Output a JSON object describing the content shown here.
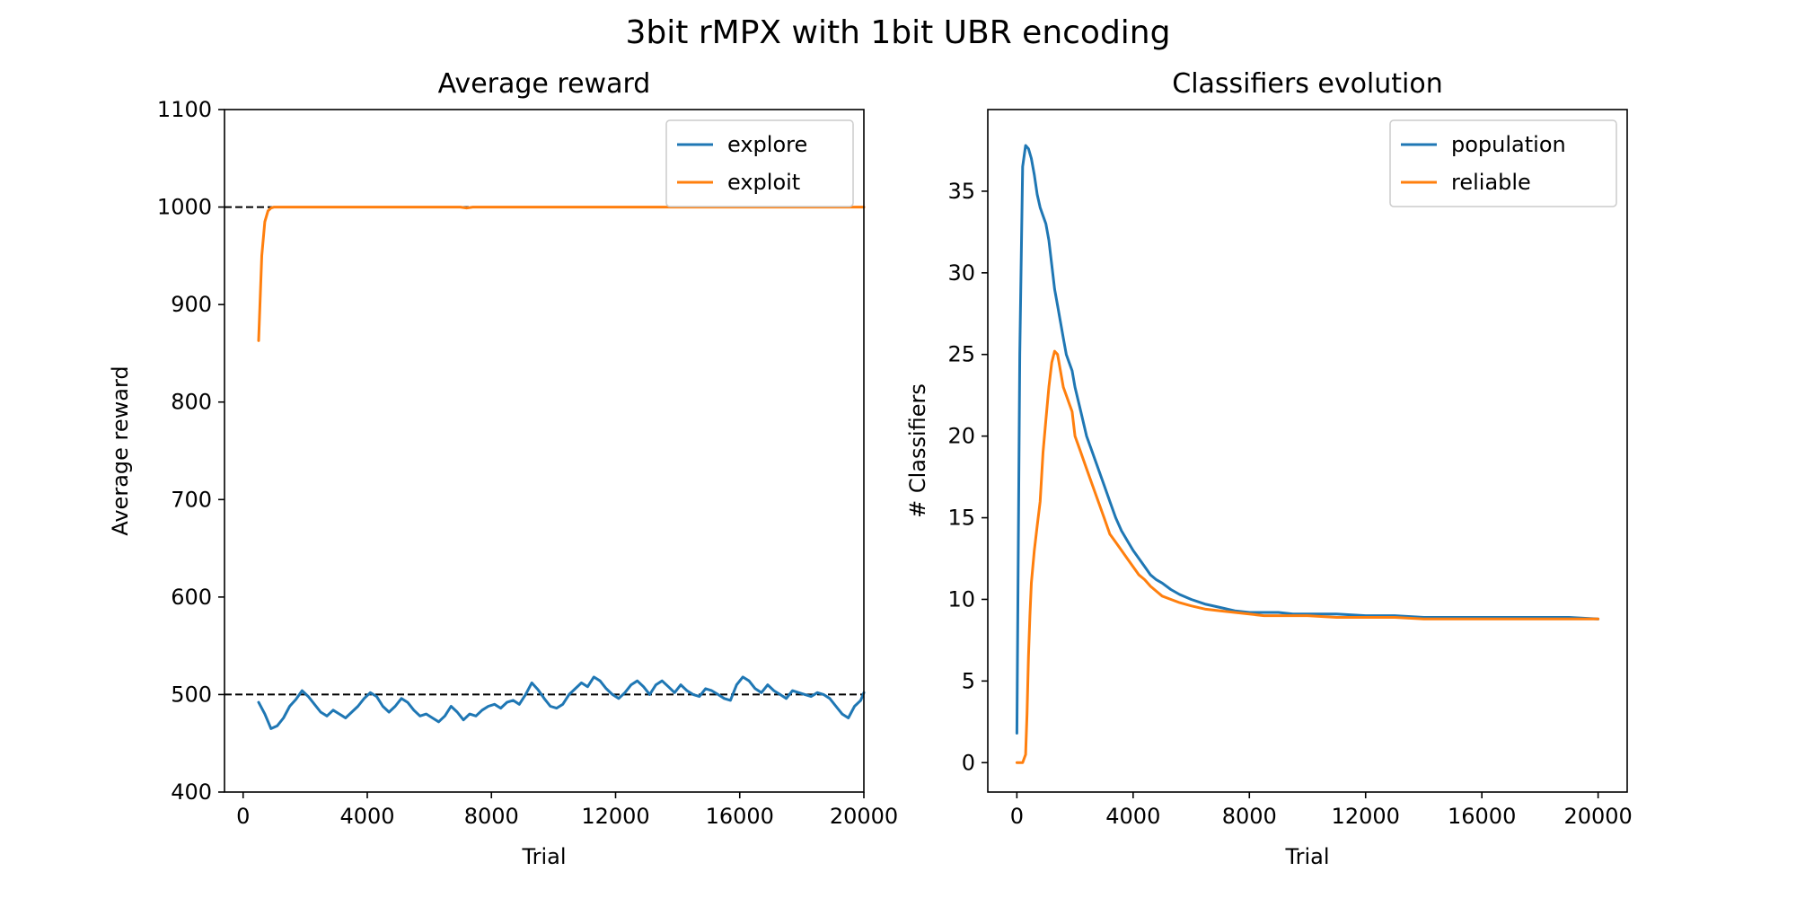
{
  "suptitle": "3bit rMPX with 1bit UBR encoding",
  "chart_data": [
    {
      "type": "line",
      "title": "Average reward",
      "xlabel": "Trial",
      "ylabel": "Average reward",
      "xlim": [
        -600,
        20000
      ],
      "ylim": [
        400,
        1100
      ],
      "xticks": [
        0,
        4000,
        8000,
        12000,
        16000,
        20000
      ],
      "yticks": [
        400,
        500,
        600,
        700,
        800,
        900,
        1000,
        1100
      ],
      "reference_lines": [
        500,
        1000
      ],
      "legend_position": "upper right",
      "series": [
        {
          "name": "explore",
          "color": "#1f77b4",
          "x": [
            500,
            700,
            900,
            1100,
            1300,
            1500,
            1700,
            1900,
            2100,
            2300,
            2500,
            2700,
            2900,
            3100,
            3300,
            3500,
            3700,
            3900,
            4100,
            4300,
            4500,
            4700,
            4900,
            5100,
            5300,
            5500,
            5700,
            5900,
            6100,
            6300,
            6500,
            6700,
            6900,
            7100,
            7300,
            7500,
            7700,
            7900,
            8100,
            8300,
            8500,
            8700,
            8900,
            9100,
            9300,
            9500,
            9700,
            9900,
            10100,
            10300,
            10500,
            10700,
            10900,
            11100,
            11300,
            11500,
            11700,
            11900,
            12100,
            12300,
            12500,
            12700,
            12900,
            13100,
            13300,
            13500,
            13700,
            13900,
            14100,
            14300,
            14500,
            14700,
            14900,
            15100,
            15300,
            15500,
            15700,
            15900,
            16100,
            16300,
            16500,
            16700,
            16900,
            17100,
            17300,
            17500,
            17700,
            17900,
            18100,
            18300,
            18500,
            18700,
            18900,
            19100,
            19300,
            19500,
            19700,
            19900,
            20000
          ],
          "y": [
            492,
            480,
            465,
            468,
            476,
            488,
            495,
            504,
            498,
            490,
            482,
            478,
            484,
            480,
            476,
            482,
            488,
            496,
            502,
            498,
            488,
            482,
            488,
            496,
            492,
            484,
            478,
            480,
            476,
            472,
            478,
            488,
            482,
            474,
            480,
            478,
            484,
            488,
            490,
            486,
            492,
            494,
            490,
            500,
            512,
            505,
            496,
            488,
            486,
            490,
            500,
            506,
            512,
            508,
            518,
            514,
            506,
            500,
            496,
            502,
            510,
            514,
            508,
            500,
            510,
            514,
            508,
            502,
            510,
            504,
            500,
            498,
            506,
            504,
            500,
            496,
            494,
            510,
            518,
            514,
            506,
            502,
            510,
            504,
            500,
            496,
            504,
            502,
            500,
            498,
            502,
            500,
            496,
            488,
            480,
            476,
            488,
            494,
            502
          ]
        },
        {
          "name": "exploit",
          "color": "#ff7f0e",
          "x": [
            500,
            600,
            700,
            800,
            900,
            1000,
            1200,
            1500,
            2000,
            3000,
            4000,
            5000,
            6000,
            7000,
            7200,
            7400,
            8000,
            9000,
            10000,
            11000,
            12000,
            13000,
            14000,
            15000,
            16000,
            17000,
            18000,
            19000,
            20000
          ],
          "y": [
            863,
            950,
            985,
            996,
            999,
            1000,
            1000,
            1000,
            1000,
            1000,
            1000,
            1000,
            1000,
            1000,
            999,
            1000,
            1000,
            1000,
            1000,
            1000,
            1000,
            1000,
            1000,
            1000,
            1000,
            1000,
            1000,
            1000,
            1000
          ]
        }
      ]
    },
    {
      "type": "line",
      "title": "Classifiers evolution",
      "xlabel": "Trial",
      "ylabel": "# Classifiers",
      "xlim": [
        -1000,
        21000
      ],
      "ylim": [
        -1.8,
        40
      ],
      "xticks": [
        0,
        4000,
        8000,
        12000,
        16000,
        20000
      ],
      "yticks": [
        0,
        5,
        10,
        15,
        20,
        25,
        30,
        35
      ],
      "legend_position": "upper right",
      "series": [
        {
          "name": "population",
          "color": "#1f77b4",
          "x": [
            0,
            100,
            200,
            300,
            400,
            500,
            600,
            700,
            800,
            900,
            1000,
            1100,
            1200,
            1300,
            1400,
            1500,
            1600,
            1700,
            1800,
            1900,
            2000,
            2200,
            2400,
            2600,
            2800,
            3000,
            3200,
            3400,
            3600,
            3800,
            4000,
            4200,
            4400,
            4600,
            4800,
            5000,
            5300,
            5600,
            6000,
            6500,
            7000,
            7500,
            8000,
            8500,
            9000,
            9500,
            10000,
            11000,
            12000,
            13000,
            14000,
            15000,
            16000,
            17000,
            18000,
            19000,
            20000
          ],
          "y": [
            1.8,
            25,
            36.5,
            37.8,
            37.6,
            37,
            36,
            34.8,
            34,
            33.5,
            33,
            32,
            30.5,
            29,
            28,
            27,
            26,
            25,
            24.5,
            24,
            23,
            21.5,
            20,
            19,
            18,
            17,
            16,
            15,
            14.2,
            13.6,
            13,
            12.5,
            12,
            11.5,
            11.2,
            11,
            10.6,
            10.3,
            10,
            9.7,
            9.5,
            9.3,
            9.2,
            9.2,
            9.2,
            9.1,
            9.1,
            9.1,
            9.0,
            9.0,
            8.9,
            8.9,
            8.9,
            8.9,
            8.9,
            8.9,
            8.8
          ]
        },
        {
          "name": "reliable",
          "color": "#ff7f0e",
          "x": [
            0,
            100,
            200,
            300,
            350,
            400,
            450,
            500,
            600,
            700,
            800,
            900,
            1000,
            1100,
            1200,
            1300,
            1400,
            1500,
            1600,
            1700,
            1800,
            1900,
            2000,
            2200,
            2400,
            2600,
            2800,
            3000,
            3200,
            3400,
            3600,
            3800,
            4000,
            4200,
            4400,
            4600,
            4800,
            5000,
            5300,
            5600,
            6000,
            6500,
            7000,
            7500,
            8000,
            8500,
            9000,
            9500,
            10000,
            11000,
            12000,
            13000,
            14000,
            15000,
            16000,
            17000,
            18000,
            19000,
            20000
          ],
          "y": [
            0,
            0,
            0,
            0.5,
            3,
            6.5,
            9,
            11,
            13,
            14.5,
            16,
            19,
            21,
            23,
            24.5,
            25.2,
            25,
            24,
            23,
            22.5,
            22,
            21.5,
            20,
            19,
            18,
            17,
            16,
            15,
            14,
            13.5,
            13,
            12.5,
            12,
            11.5,
            11.2,
            10.8,
            10.5,
            10.2,
            10,
            9.8,
            9.6,
            9.4,
            9.3,
            9.2,
            9.1,
            9.0,
            9.0,
            9.0,
            9.0,
            8.9,
            8.9,
            8.9,
            8.8,
            8.8,
            8.8,
            8.8,
            8.8,
            8.8,
            8.8
          ]
        }
      ]
    }
  ]
}
